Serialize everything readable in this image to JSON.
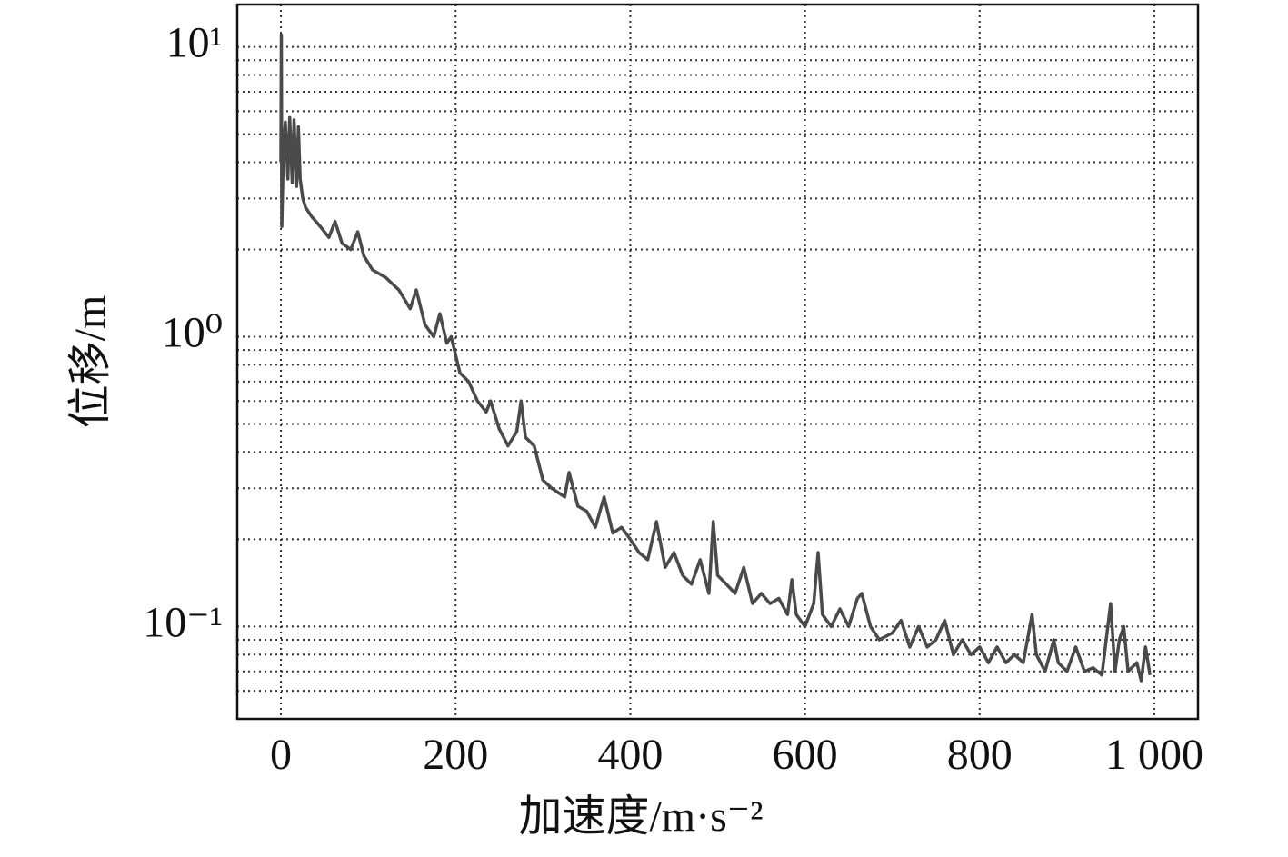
{
  "chart_data": {
    "type": "line",
    "xlabel": "加速度/m·s⁻²",
    "ylabel": "位移/m",
    "xlim": [
      -50,
      1050
    ],
    "xticks": [
      0,
      200,
      400,
      600,
      800,
      {
        "value": 1000,
        "label": "1 000"
      }
    ],
    "ylim": [
      0.048,
      14
    ],
    "log_y": true,
    "yticks": [
      {
        "value": 0.1,
        "label": "10⁻¹"
      },
      {
        "value": 1,
        "label": "10⁰"
      },
      {
        "value": 10,
        "label": "10¹"
      }
    ],
    "yminorticks": [
      0.06,
      0.07,
      0.08,
      0.09,
      0.2,
      0.3,
      0.4,
      0.5,
      0.6,
      0.7,
      0.8,
      0.9,
      2,
      3,
      4,
      5,
      6,
      7,
      8,
      9
    ],
    "grid": true,
    "color": "#4a4a4a",
    "x": [
      0,
      0.5,
      1,
      3,
      5,
      8,
      10,
      13,
      15,
      18,
      20,
      22,
      25,
      28,
      35,
      45,
      55,
      62,
      70,
      80,
      88,
      95,
      105,
      120,
      135,
      148,
      155,
      165,
      175,
      182,
      190,
      195,
      205,
      215,
      225,
      235,
      240,
      250,
      260,
      270,
      275,
      280,
      290,
      300,
      310,
      325,
      330,
      340,
      350,
      360,
      370,
      380,
      390,
      400,
      410,
      420,
      430,
      440,
      450,
      460,
      470,
      480,
      490,
      495,
      500,
      510,
      520,
      530,
      540,
      550,
      560,
      570,
      580,
      585,
      590,
      600,
      610,
      615,
      620,
      630,
      640,
      650,
      660,
      665,
      675,
      685,
      700,
      710,
      720,
      730,
      740,
      750,
      760,
      770,
      780,
      790,
      800,
      810,
      820,
      830,
      840,
      850,
      860,
      865,
      875,
      885,
      890,
      900,
      910,
      920,
      930,
      940,
      950,
      955,
      960,
      965,
      970,
      980,
      985,
      990,
      995
    ],
    "values": [
      4,
      11,
      2.4,
      4.5,
      5.5,
      3.5,
      5.7,
      3.4,
      5.6,
      3.3,
      5.3,
      3.5,
      3.0,
      2.8,
      2.6,
      2.4,
      2.2,
      2.5,
      2.1,
      2.0,
      2.3,
      1.9,
      1.7,
      1.6,
      1.45,
      1.25,
      1.45,
      1.1,
      1.0,
      1.2,
      0.95,
      1.0,
      0.75,
      0.7,
      0.6,
      0.55,
      0.6,
      0.48,
      0.42,
      0.47,
      0.6,
      0.45,
      0.42,
      0.32,
      0.3,
      0.28,
      0.34,
      0.26,
      0.25,
      0.22,
      0.28,
      0.21,
      0.22,
      0.2,
      0.18,
      0.17,
      0.23,
      0.16,
      0.18,
      0.15,
      0.14,
      0.17,
      0.13,
      0.23,
      0.15,
      0.14,
      0.13,
      0.16,
      0.12,
      0.13,
      0.12,
      0.125,
      0.11,
      0.145,
      0.11,
      0.1,
      0.12,
      0.18,
      0.11,
      0.1,
      0.115,
      0.1,
      0.125,
      0.13,
      0.1,
      0.09,
      0.095,
      0.105,
      0.085,
      0.1,
      0.085,
      0.09,
      0.105,
      0.08,
      0.09,
      0.08,
      0.085,
      0.075,
      0.085,
      0.075,
      0.08,
      0.075,
      0.11,
      0.08,
      0.07,
      0.09,
      0.075,
      0.07,
      0.085,
      0.07,
      0.072,
      0.068,
      0.12,
      0.07,
      0.09,
      0.1,
      0.07,
      0.075,
      0.065,
      0.085,
      0.068
    ]
  }
}
